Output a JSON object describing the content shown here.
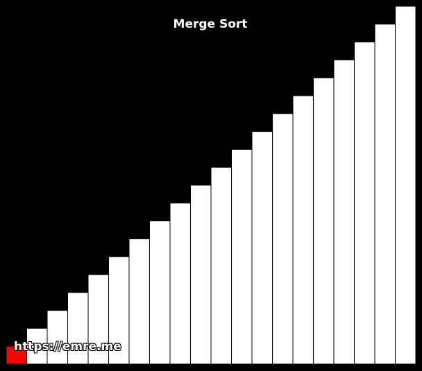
{
  "title": "Merge Sort",
  "watermark": "https://emre.me",
  "colors": {
    "background": "#000000",
    "bar": "#ffffff",
    "bar_border": "#000000",
    "active_bar": "#ff0000",
    "text": "#ffffff"
  },
  "chart_data": {
    "type": "bar",
    "values": [
      1,
      2,
      3,
      4,
      5,
      6,
      7,
      8,
      9,
      10,
      11,
      12,
      13,
      14,
      15,
      16,
      17,
      18,
      19,
      20
    ],
    "highlighted_index": 0,
    "ylim": [
      0,
      20
    ]
  }
}
